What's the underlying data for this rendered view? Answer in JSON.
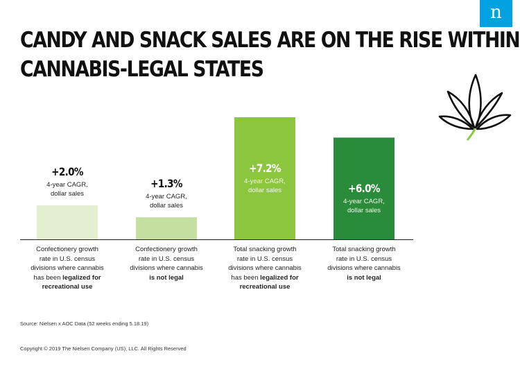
{
  "header": {
    "title_line1": "CANDY AND SNACK SALES ARE ON THE RISE WITHIN",
    "title_line2": "CANNABIS-LEGAL STATES",
    "logo_text": "n"
  },
  "colors": {
    "brand_blue": "#00a3e0",
    "bar1": "#e3efcf",
    "bar2": "#c4dfa0",
    "bar3": "#8cc63f",
    "bar4": "#2a8b3a",
    "leaf_stem": "#8cc63f"
  },
  "icons": {
    "logo": "nielsen-logo",
    "leaf": "cannabis-leaf-icon"
  },
  "chart_data": {
    "type": "bar",
    "title": "CANDY AND SNACK SALES ARE ON THE RISE WITHIN CANNABIS-LEGAL STATES",
    "ylabel": "4-year CAGR, dollar sales",
    "unit": "%",
    "ylim": [
      0,
      7.2
    ],
    "categories": [
      {
        "line1": "Confectionery growth",
        "line2": "rate in U.S. census",
        "line3": "divisions where cannabis",
        "line4": "has been",
        "bold1": "legalized for",
        "bold2": "recreational use"
      },
      {
        "line1": "Confectionery growth",
        "line2": "rate in U.S. census",
        "line3": "divisions where cannabis",
        "line4": "",
        "bold1": "is not legal",
        "bold2": ""
      },
      {
        "line1": "Total snacking growth",
        "line2": "rate in U.S. census",
        "line3": "divisions where cannabis",
        "line4": "has been",
        "bold1": "legalized for",
        "bold2": "recreational use"
      },
      {
        "line1": "Total snacking growth",
        "line2": "rate in U.S. census",
        "line3": "divisions where cannabis",
        "line4": "",
        "bold1": "is not legal",
        "bold2": ""
      }
    ],
    "values": [
      2.0,
      1.3,
      7.2,
      6.0
    ],
    "data_labels": [
      "+2.0%",
      "+1.3%",
      "+7.2%",
      "+6.0%"
    ],
    "sub_label_line1": "4-year CAGR,",
    "sub_label_line2": "dollar sales",
    "grid": false,
    "legend": "none"
  },
  "footer": {
    "source": "Source:  Nielsen x AOC Data (52 weeks ending 5.18.19)",
    "copyright": "Copyright © 2019 The Nielsen Company (US), LLC. All Rights Reserved"
  }
}
